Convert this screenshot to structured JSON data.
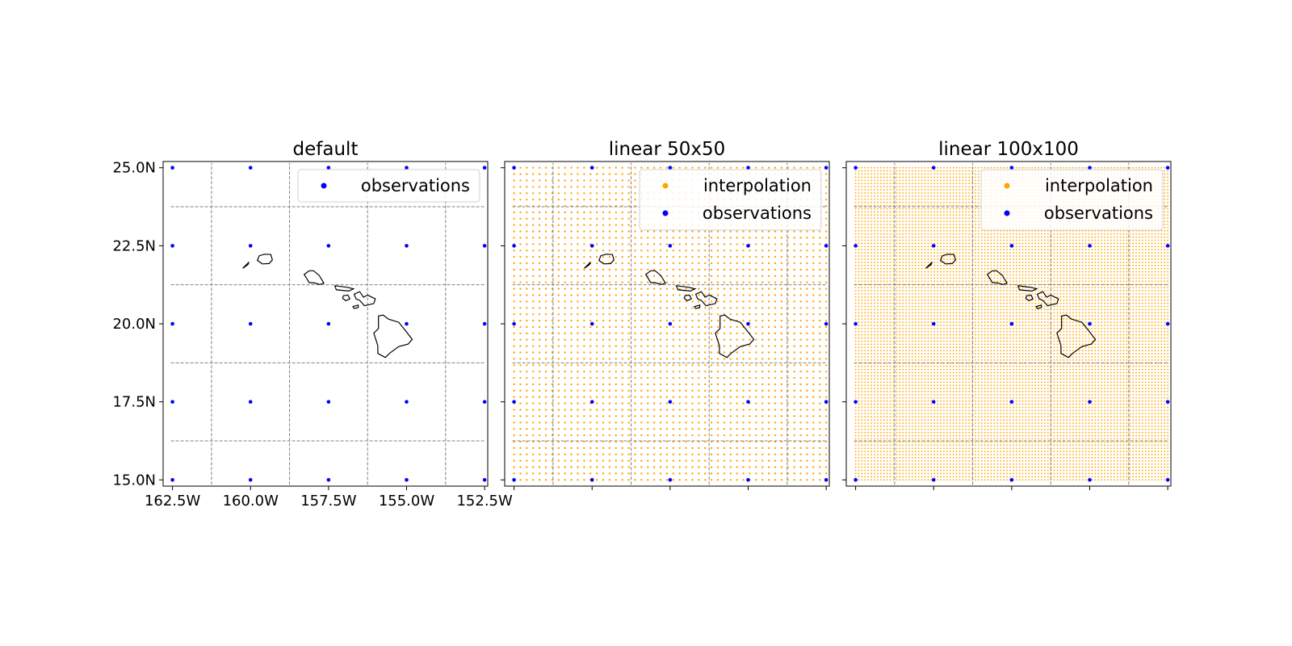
{
  "chart_data": [
    {
      "type": "scatter",
      "title": "default",
      "xlim": [
        -162.8,
        -152.4
      ],
      "ylim": [
        14.8,
        25.2
      ],
      "x_ticks": [
        -162.5,
        -160.0,
        -157.5,
        -155.0,
        -152.5
      ],
      "x_tick_labels": [
        "162.5W",
        "160.0W",
        "157.5W",
        "155.0W",
        "152.5W"
      ],
      "y_ticks": [
        15.0,
        17.5,
        20.0,
        22.5,
        25.0
      ],
      "y_tick_labels": [
        "15.0N",
        "17.5N",
        "20.0N",
        "22.5N",
        "25.0N"
      ],
      "show_tick_labels": true,
      "series": [
        {
          "name": "observations",
          "color": "#0000ff",
          "grid_x": [
            -162.5,
            -160.0,
            -157.5,
            -155.0,
            -152.5
          ],
          "grid_y": [
            15.0,
            17.5,
            20.0,
            22.5,
            25.0
          ]
        }
      ],
      "legend": [
        "observations"
      ],
      "legend_position": "top-right",
      "gridlines": {
        "lon": [
          -161.25,
          -158.75,
          -156.25,
          -153.75
        ],
        "lat": [
          16.25,
          18.75,
          21.25,
          23.75
        ],
        "style": "dashed"
      }
    },
    {
      "type": "scatter",
      "title": "linear 50x50",
      "xlim": [
        -162.8,
        -152.4
      ],
      "ylim": [
        14.8,
        25.2
      ],
      "x_ticks": [
        -162.5,
        -160.0,
        -157.5,
        -155.0,
        -152.5
      ],
      "y_ticks": [
        15.0,
        17.5,
        20.0,
        22.5,
        25.0
      ],
      "show_tick_labels": false,
      "series": [
        {
          "name": "interpolation",
          "color": "#ffa500",
          "grid_n": 50,
          "x_range": [
            -162.5,
            -152.5
          ],
          "y_range": [
            15.0,
            25.0
          ]
        },
        {
          "name": "observations",
          "color": "#0000ff",
          "grid_x": [
            -162.5,
            -160.0,
            -157.5,
            -155.0,
            -152.5
          ],
          "grid_y": [
            15.0,
            17.5,
            20.0,
            22.5,
            25.0
          ]
        }
      ],
      "legend": [
        "interpolation",
        "observations"
      ],
      "legend_position": "top-right",
      "gridlines": {
        "lon": [
          -161.25,
          -158.75,
          -156.25,
          -153.75
        ],
        "lat": [
          16.25,
          18.75,
          21.25,
          23.75
        ],
        "style": "dashed"
      }
    },
    {
      "type": "scatter",
      "title": "linear 100x100",
      "xlim": [
        -162.8,
        -152.4
      ],
      "ylim": [
        14.8,
        25.2
      ],
      "x_ticks": [
        -162.5,
        -160.0,
        -157.5,
        -155.0,
        -152.5
      ],
      "y_ticks": [
        15.0,
        17.5,
        20.0,
        22.5,
        25.0
      ],
      "show_tick_labels": false,
      "series": [
        {
          "name": "interpolation",
          "color": "#ffa500",
          "grid_n": 100,
          "x_range": [
            -162.5,
            -152.5
          ],
          "y_range": [
            15.0,
            25.0
          ]
        },
        {
          "name": "observations",
          "color": "#0000ff",
          "grid_x": [
            -162.5,
            -160.0,
            -157.5,
            -155.0,
            -152.5
          ],
          "grid_y": [
            15.0,
            17.5,
            20.0,
            22.5,
            25.0
          ]
        }
      ],
      "legend": [
        "interpolation",
        "observations"
      ],
      "legend_position": "top-right",
      "gridlines": {
        "lon": [
          -161.25,
          -158.75,
          -156.25,
          -153.75
        ],
        "lat": [
          16.25,
          18.75,
          21.25,
          23.75
        ],
        "style": "dashed"
      }
    }
  ],
  "coastlines": [
    {
      "name": "niihau",
      "lonlat": [
        [
          -160.25,
          21.78
        ],
        [
          -160.08,
          21.9
        ],
        [
          -160.05,
          21.98
        ],
        [
          -160.18,
          21.85
        ],
        [
          -160.25,
          21.78
        ]
      ]
    },
    {
      "name": "kauai",
      "lonlat": [
        [
          -159.78,
          22.03
        ],
        [
          -159.72,
          22.18
        ],
        [
          -159.55,
          22.23
        ],
        [
          -159.35,
          22.22
        ],
        [
          -159.3,
          22.05
        ],
        [
          -159.4,
          21.93
        ],
        [
          -159.62,
          21.92
        ],
        [
          -159.78,
          22.03
        ]
      ]
    },
    {
      "name": "oahu",
      "lonlat": [
        [
          -158.28,
          21.58
        ],
        [
          -158.12,
          21.7
        ],
        [
          -157.98,
          21.7
        ],
        [
          -157.8,
          21.55
        ],
        [
          -157.65,
          21.3
        ],
        [
          -157.78,
          21.26
        ],
        [
          -157.95,
          21.31
        ],
        [
          -158.12,
          21.32
        ],
        [
          -158.28,
          21.58
        ]
      ]
    },
    {
      "name": "molokai",
      "lonlat": [
        [
          -157.3,
          21.22
        ],
        [
          -157.25,
          21.09
        ],
        [
          -156.85,
          21.05
        ],
        [
          -156.7,
          21.12
        ],
        [
          -156.9,
          21.17
        ],
        [
          -157.3,
          21.22
        ]
      ]
    },
    {
      "name": "lanai",
      "lonlat": [
        [
          -157.02,
          20.9
        ],
        [
          -156.88,
          20.92
        ],
        [
          -156.82,
          20.8
        ],
        [
          -156.95,
          20.74
        ],
        [
          -157.05,
          20.82
        ],
        [
          -157.02,
          20.9
        ]
      ]
    },
    {
      "name": "maui",
      "lonlat": [
        [
          -156.68,
          20.95
        ],
        [
          -156.5,
          21.03
        ],
        [
          -156.38,
          20.85
        ],
        [
          -156.25,
          20.92
        ],
        [
          -156.0,
          20.8
        ],
        [
          -156.05,
          20.65
        ],
        [
          -156.35,
          20.58
        ],
        [
          -156.5,
          20.75
        ],
        [
          -156.62,
          20.8
        ],
        [
          -156.68,
          20.95
        ]
      ]
    },
    {
      "name": "kahoolawe",
      "lonlat": [
        [
          -156.72,
          20.55
        ],
        [
          -156.55,
          20.6
        ],
        [
          -156.55,
          20.52
        ],
        [
          -156.68,
          20.49
        ],
        [
          -156.72,
          20.55
        ]
      ]
    },
    {
      "name": "hawaii",
      "lonlat": [
        [
          -155.9,
          20.25
        ],
        [
          -155.75,
          20.28
        ],
        [
          -155.58,
          20.15
        ],
        [
          -155.25,
          20.05
        ],
        [
          -155.05,
          19.8
        ],
        [
          -154.82,
          19.5
        ],
        [
          -154.95,
          19.35
        ],
        [
          -155.25,
          19.27
        ],
        [
          -155.55,
          19.05
        ],
        [
          -155.68,
          18.92
        ],
        [
          -155.92,
          19.05
        ],
        [
          -155.92,
          19.3
        ],
        [
          -156.05,
          19.7
        ],
        [
          -155.9,
          19.85
        ],
        [
          -155.9,
          20.25
        ]
      ]
    }
  ]
}
